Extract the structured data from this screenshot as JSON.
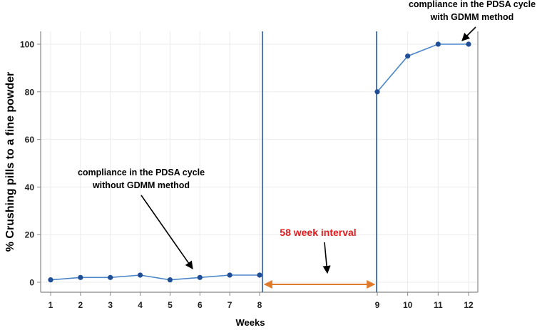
{
  "chart_data": {
    "type": "line",
    "title": "",
    "xlabel": "Weeks",
    "ylabel": "% Crushing pills to a fine powder",
    "ylim": [
      0,
      100
    ],
    "yticks": [
      0,
      20,
      40,
      60,
      80,
      100
    ],
    "grid": true,
    "series": [
      {
        "name": "PDSA cycle without GDMM method",
        "x": [
          1,
          2,
          3,
          4,
          5,
          6,
          7,
          8
        ],
        "values": [
          1,
          2,
          2,
          3,
          1,
          2,
          3,
          3
        ]
      },
      {
        "name": "PDSA cycle with GDMM method",
        "x": [
          9,
          10,
          11,
          12
        ],
        "values": [
          80,
          95,
          100,
          100
        ]
      }
    ],
    "xticks_left": [
      "1",
      "2",
      "3",
      "4",
      "5",
      "6",
      "7",
      "8"
    ],
    "xticks_right": [
      "9",
      "10",
      "11",
      "12"
    ],
    "annotations": {
      "without_line1": "compliance in the PDSA cycle",
      "without_line2": "without GDMM method",
      "with_line1": "compliance in the PDSA cycle",
      "with_line2": "with GDMM method",
      "interval": "58 week interval"
    },
    "colors": {
      "series": "#4a86c8",
      "points": "#1f4e96",
      "divider": "#3a6db0",
      "interval_arrow": "#e07a2c",
      "interval_text": "#e01b1b",
      "grid": "#ebebeb",
      "axis": "#888888"
    }
  }
}
